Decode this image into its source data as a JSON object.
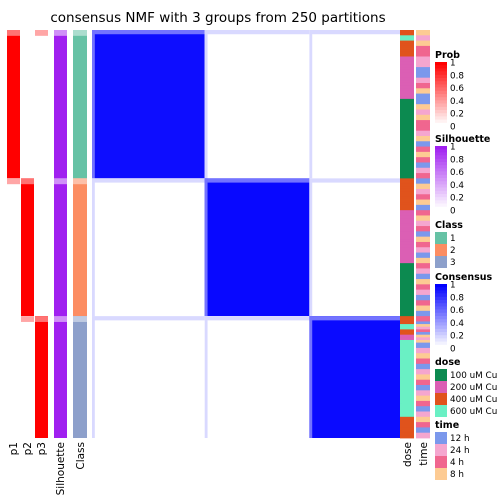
{
  "chart_data": {
    "type": "heatmap",
    "title": "consensus NMF with 3 groups from 250 partitions",
    "groups": [
      {
        "class": "1",
        "n": 56
      },
      {
        "class": "2",
        "n": 52
      },
      {
        "class": "3",
        "n": 46
      }
    ],
    "annotation_columns_left": [
      "p1",
      "p2",
      "p3",
      "Silhouette",
      "Class"
    ],
    "annotation_columns_right": [
      "dose",
      "time"
    ],
    "consensus_within": [
      0.95,
      0.97,
      0.96
    ],
    "consensus_between_low": 0.0,
    "consensus_between_faint": 0.15,
    "dose_sequence": [
      "400 uM Cu",
      "400 uM Cu",
      "600 uM Cu",
      "600 uM Cu",
      "400 uM Cu",
      "400 uM Cu",
      "400 uM Cu",
      "400 uM Cu",
      "400 uM Cu",
      "400 uM Cu",
      "200 uM Cu",
      "200 uM Cu",
      "200 uM Cu",
      "200 uM Cu",
      "200 uM Cu",
      "200 uM Cu",
      "200 uM Cu",
      "200 uM Cu",
      "200 uM Cu",
      "200 uM Cu",
      "200 uM Cu",
      "200 uM Cu",
      "200 uM Cu",
      "200 uM Cu",
      "200 uM Cu",
      "200 uM Cu",
      "100 uM Cu",
      "100 uM Cu",
      "100 uM Cu",
      "100 uM Cu",
      "100 uM Cu",
      "100 uM Cu",
      "100 uM Cu",
      "100 uM Cu",
      "100 uM Cu",
      "100 uM Cu",
      "100 uM Cu",
      "100 uM Cu",
      "100 uM Cu",
      "100 uM Cu",
      "100 uM Cu",
      "100 uM Cu",
      "100 uM Cu",
      "100 uM Cu",
      "100 uM Cu",
      "100 uM Cu",
      "100 uM Cu",
      "100 uM Cu",
      "100 uM Cu",
      "100 uM Cu",
      "100 uM Cu",
      "100 uM Cu",
      "100 uM Cu",
      "100 uM Cu",
      "100 uM Cu",
      "100 uM Cu",
      "400 uM Cu",
      "400 uM Cu",
      "400 uM Cu",
      "400 uM Cu",
      "400 uM Cu",
      "400 uM Cu",
      "400 uM Cu",
      "400 uM Cu",
      "400 uM Cu",
      "400 uM Cu",
      "400 uM Cu",
      "400 uM Cu",
      "200 uM Cu",
      "200 uM Cu",
      "200 uM Cu",
      "200 uM Cu",
      "200 uM Cu",
      "200 uM Cu",
      "200 uM Cu",
      "200 uM Cu",
      "200 uM Cu",
      "200 uM Cu",
      "200 uM Cu",
      "200 uM Cu",
      "200 uM Cu",
      "200 uM Cu",
      "200 uM Cu",
      "200 uM Cu",
      "200 uM Cu",
      "200 uM Cu",
      "200 uM Cu",
      "200 uM Cu",
      "100 uM Cu",
      "100 uM Cu",
      "100 uM Cu",
      "100 uM Cu",
      "100 uM Cu",
      "100 uM Cu",
      "100 uM Cu",
      "100 uM Cu",
      "100 uM Cu",
      "100 uM Cu",
      "100 uM Cu",
      "100 uM Cu",
      "100 uM Cu",
      "100 uM Cu",
      "100 uM Cu",
      "100 uM Cu",
      "100 uM Cu",
      "100 uM Cu",
      "100 uM Cu",
      "100 uM Cu",
      "400 uM Cu",
      "400 uM Cu",
      "400 uM Cu",
      "600 uM Cu",
      "600 uM Cu",
      "400 uM Cu",
      "400 uM Cu",
      "200 uM Cu",
      "200 uM Cu",
      "600 uM Cu",
      "600 uM Cu",
      "600 uM Cu",
      "600 uM Cu",
      "600 uM Cu",
      "600 uM Cu",
      "600 uM Cu",
      "600 uM Cu",
      "600 uM Cu",
      "600 uM Cu",
      "600 uM Cu",
      "600 uM Cu",
      "600 uM Cu",
      "600 uM Cu",
      "600 uM Cu",
      "600 uM Cu",
      "600 uM Cu",
      "600 uM Cu",
      "600 uM Cu",
      "600 uM Cu",
      "600 uM Cu",
      "600 uM Cu",
      "600 uM Cu",
      "600 uM Cu",
      "600 uM Cu",
      "600 uM Cu",
      "600 uM Cu",
      "600 uM Cu",
      "600 uM Cu",
      "400 uM Cu",
      "400 uM Cu",
      "400 uM Cu",
      "400 uM Cu",
      "400 uM Cu",
      "400 uM Cu",
      "400 uM Cu",
      "400 uM Cu"
    ],
    "time_sequence": [
      "8 h",
      "8 h",
      "24 h",
      "24 h",
      "8 h",
      "8 h",
      "4 h",
      "4 h",
      "4 h",
      "4 h",
      "24 h",
      "24 h",
      "24 h",
      "24 h",
      "12 h",
      "12 h",
      "12 h",
      "12 h",
      "24 h",
      "24 h",
      "4 h",
      "4 h",
      "8 h",
      "8 h",
      "12 h",
      "12 h",
      "12 h",
      "12 h",
      "8 h",
      "8 h",
      "24 h",
      "24 h",
      "8 h",
      "8 h",
      "4 h",
      "4 h",
      "4 h",
      "4 h",
      "24 h",
      "24 h",
      "8 h",
      "8 h",
      "12 h",
      "12 h",
      "4 h",
      "4 h",
      "8 h",
      "8 h",
      "4 h",
      "4 h",
      "12 h",
      "12 h",
      "24 h",
      "24 h",
      "4 h",
      "4 h",
      "12 h",
      "12 h",
      "8 h",
      "8 h",
      "24 h",
      "24 h",
      "4 h",
      "4 h",
      "8 h",
      "8 h",
      "12 h",
      "12 h",
      "4 h",
      "4 h",
      "8 h",
      "8 h",
      "24 h",
      "24 h",
      "4 h",
      "4 h",
      "12 h",
      "12 h",
      "8 h",
      "8 h",
      "4 h",
      "4 h",
      "24 h",
      "24 h",
      "12 h",
      "12 h",
      "8 h",
      "8 h",
      "4 h",
      "4 h",
      "24 h",
      "24 h",
      "12 h",
      "12 h",
      "8 h",
      "8 h",
      "4 h",
      "4 h",
      "24 h",
      "24 h",
      "12 h",
      "12 h",
      "4 h",
      "4 h",
      "8 h",
      "8 h",
      "12 h",
      "12 h",
      "4 h",
      "4 h",
      "12 h",
      "8 h",
      "24 h",
      "4 h",
      "12 h",
      "8 h",
      "24 h",
      "8 h",
      "12 h",
      "12 h",
      "24 h",
      "24 h",
      "8 h",
      "8 h",
      "4 h",
      "4 h",
      "12 h",
      "12 h",
      "24 h",
      "24 h",
      "8 h",
      "8 h",
      "4 h",
      "4 h",
      "12 h",
      "12 h",
      "24 h",
      "24 h",
      "8 h",
      "8 h",
      "4 h",
      "4 h",
      "12 h",
      "12 h",
      "24 h",
      "24 h",
      "8 h",
      "8 h",
      "4 h",
      "4 h",
      "12 h",
      "12 h",
      "24 h",
      "24 h"
    ]
  },
  "legends": {
    "prob": {
      "title": "Prob",
      "ticks": [
        "1",
        "0.8",
        "0.6",
        "0.4",
        "0.2",
        "0"
      ],
      "color_high": "#ff0000",
      "color_low": "#ffffff"
    },
    "silhouette": {
      "title": "Silhouette",
      "ticks": [
        "1",
        "0.8",
        "0.6",
        "0.4",
        "0.2",
        "0"
      ],
      "color_high": "#a020f0",
      "color_low": "#ffffff"
    },
    "class": {
      "title": "Class",
      "items": [
        {
          "label": "1",
          "color": "#66c2a5"
        },
        {
          "label": "2",
          "color": "#fc8d62"
        },
        {
          "label": "3",
          "color": "#8da0cb"
        }
      ]
    },
    "consensus": {
      "title": "Consensus",
      "ticks": [
        "1",
        "0.8",
        "0.6",
        "0.4",
        "0.2",
        "0"
      ],
      "color_high": "#0000ff",
      "color_low": "#ffffff"
    },
    "dose": {
      "title": "dose",
      "items": [
        {
          "label": "100 uM Cu",
          "color": "#0c8a50"
        },
        {
          "label": "200 uM Cu",
          "color": "#db5fb4"
        },
        {
          "label": "400 uM Cu",
          "color": "#e0531c"
        },
        {
          "label": "600 uM Cu",
          "color": "#6af0c4"
        }
      ]
    },
    "time": {
      "title": "time",
      "items": [
        {
          "label": "12 h",
          "color": "#7b98ec"
        },
        {
          "label": "24 h",
          "color": "#f5a6cf"
        },
        {
          "label": "4 h",
          "color": "#f0668f"
        },
        {
          "label": "8 h",
          "color": "#fdcb93"
        }
      ]
    }
  }
}
